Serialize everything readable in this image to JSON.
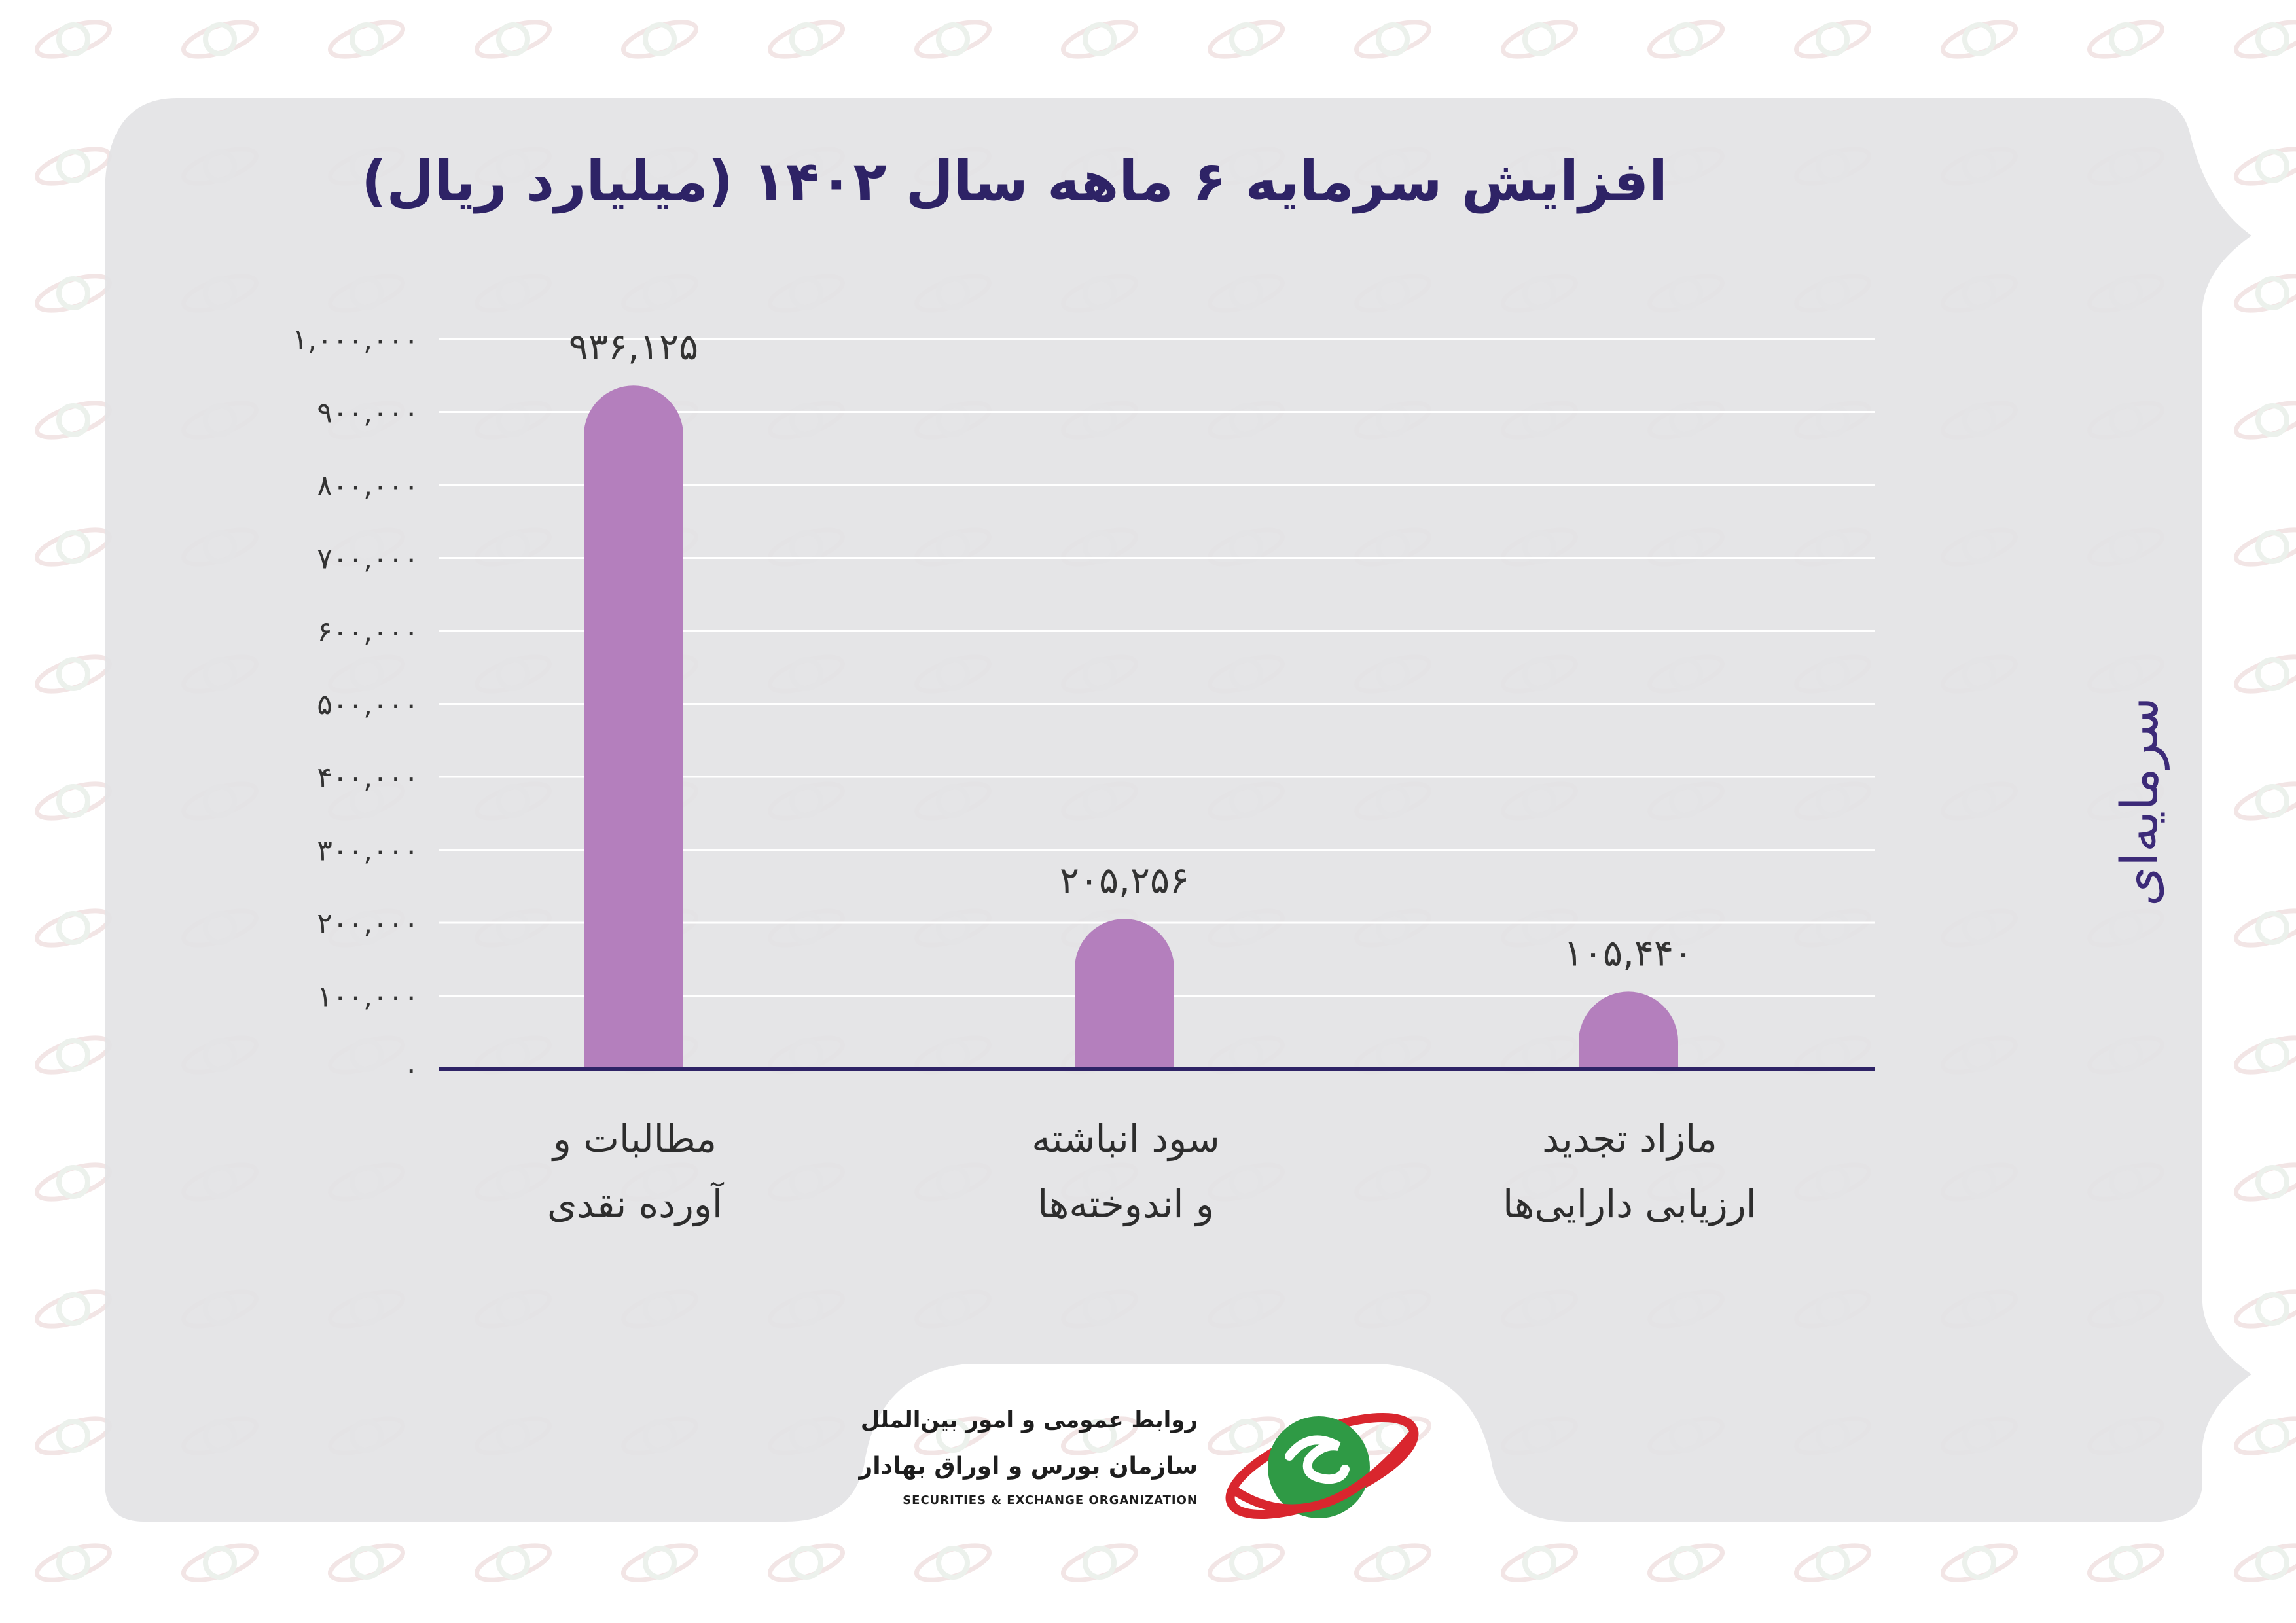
{
  "title": "افزایش سرمایه ۶ ماهه سال ۱۴۰۲ (میلیارد ریال)",
  "side_label": "سرمایه‌ای",
  "logo": {
    "line1": "روابط عمومی و امور بین‌الملل",
    "line2": "سازمان بورس و اوراق بهادار",
    "line3": "SECURITIES & EXCHANGE  ORGANIZATION"
  },
  "colors": {
    "bar": "#b47fbd",
    "axis": "#2e2366",
    "grid": "#ffffff",
    "card": "#e3e3e5",
    "title": "#2e2366"
  },
  "chart_data": {
    "type": "bar",
    "title": "افزایش سرمایه ۶ ماهه سال ۱۴۰۲ (میلیارد ریال)",
    "categories": [
      [
        "مطالبات و",
        "آورده نقدی"
      ],
      [
        "سود انباشته",
        "و اندوخته‌ها"
      ],
      [
        "مازاد تجدید",
        "ارزیابی دارایی‌ها"
      ]
    ],
    "values": [
      936125,
      205256,
      105440
    ],
    "value_labels": [
      "۹۳۶,۱۲۵",
      "۲۰۵,۲۵۶",
      "۱۰۵,۴۴۰"
    ],
    "ylim": [
      0,
      1000000
    ],
    "yticks": [
      0,
      100000,
      200000,
      300000,
      400000,
      500000,
      600000,
      700000,
      800000,
      900000,
      1000000
    ],
    "ytick_labels": [
      "۰",
      "۱۰۰,۰۰۰",
      "۲۰۰,۰۰۰",
      "۳۰۰,۰۰۰",
      "۴۰۰,۰۰۰",
      "۵۰۰,۰۰۰",
      "۶۰۰,۰۰۰",
      "۷۰۰,۰۰۰",
      "۸۰۰,۰۰۰",
      "۹۰۰,۰۰۰",
      "۱,۰۰۰,۰۰۰"
    ],
    "grid": true,
    "xlabel": "",
    "ylabel": ""
  }
}
